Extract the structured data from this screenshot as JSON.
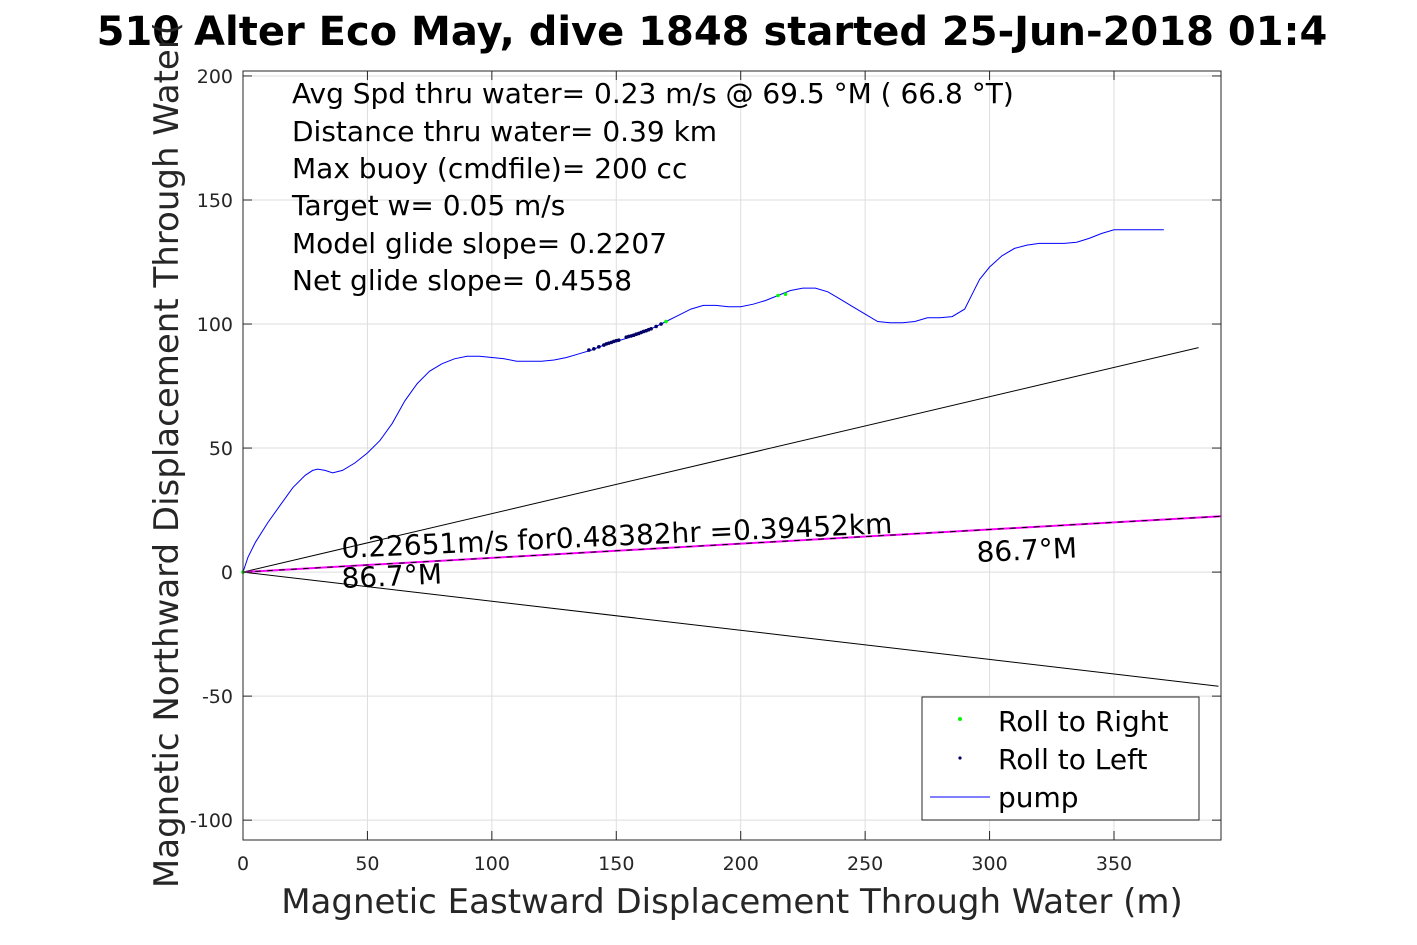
{
  "chart_data": {
    "type": "line",
    "title": "510 Alter Eco May, dive 1848 started 25-Jun-2018 01:4",
    "xlabel": "Magnetic Eastward Displacement Through Water (m)",
    "ylabel": "Magnetic Northward Displacement Through Water(",
    "xlim": [
      0,
      393
    ],
    "ylim": [
      -108,
      202
    ],
    "x_ticks": [
      0,
      50,
      100,
      150,
      200,
      250,
      300,
      350
    ],
    "y_ticks": [
      -100,
      -50,
      0,
      50,
      100,
      150,
      200
    ],
    "grid": true,
    "legend_position": "bottom-right",
    "info_lines": [
      "Avg Spd thru water=  0.23 m/s @  69.5 °M ( 66.8 °T)",
      "Distance thru water=  0.39 km",
      "Max buoy (cmdfile)= 200 cc",
      "Target w= 0.05 m/s",
      "Model glide slope= 0.2207",
      "Net glide slope= 0.4558"
    ],
    "annotations": {
      "speed_text": "0.22651m/s for0.48382hr =0.39452km",
      "heading_left": "86.7°M",
      "heading_right": "86.7°M"
    },
    "series": [
      {
        "name": "pump",
        "type": "line",
        "color": "#0000ff",
        "x": [
          0,
          2,
          5,
          10,
          15,
          20,
          25,
          28,
          30,
          33,
          36,
          40,
          45,
          50,
          55,
          60,
          65,
          70,
          75,
          80,
          85,
          90,
          95,
          100,
          105,
          110,
          115,
          120,
          125,
          130,
          135,
          140,
          145,
          150,
          155,
          160,
          165,
          170,
          175,
          180,
          185,
          190,
          195,
          200,
          205,
          210,
          215,
          220,
          225,
          230,
          235,
          240,
          245,
          250,
          255,
          260,
          265,
          270,
          275,
          280,
          285,
          290,
          293,
          296,
          300,
          305,
          310,
          315,
          320,
          325,
          330,
          335,
          340,
          345,
          350,
          355,
          360,
          365,
          370
        ],
        "y": [
          0,
          6,
          12,
          20,
          27,
          34,
          39,
          41,
          41.5,
          41,
          40,
          41,
          44,
          48,
          53,
          60,
          69,
          76,
          81,
          84,
          86,
          87,
          87,
          86.5,
          86,
          85,
          85,
          85,
          85.5,
          86.5,
          88,
          89.5,
          91.5,
          93,
          94.5,
          96.5,
          98.5,
          101,
          103.5,
          106,
          107.5,
          107.5,
          107,
          107,
          108,
          109.5,
          111.5,
          113.5,
          114.5,
          114.5,
          113,
          110,
          107,
          104,
          101,
          100.5,
          100.5,
          101,
          102.5,
          102.5,
          103,
          106,
          112,
          118,
          123,
          127.5,
          130.5,
          131.8,
          132.5,
          132.5,
          132.5,
          133,
          134.5,
          136.5,
          138,
          138,
          138,
          138,
          138
        ]
      },
      {
        "name": "Roll to Right",
        "type": "scatter",
        "color": "#00ff00",
        "x": [
          0,
          170,
          215,
          218
        ],
        "y": [
          0,
          101,
          111.5,
          112
        ]
      },
      {
        "name": "Roll to Left",
        "type": "scatter",
        "color": "#000066",
        "x": [
          139,
          141,
          143,
          145,
          146,
          147,
          148,
          149,
          150,
          151,
          154,
          155,
          156,
          157,
          158,
          159,
          160,
          161,
          162,
          163,
          164,
          166,
          168
        ],
        "y": [
          89.5,
          90,
          90.8,
          91.5,
          92,
          92.3,
          92.6,
          93,
          93.3,
          93.5,
          94.7,
          95,
          95.2,
          95.5,
          95.9,
          96.2,
          96.6,
          97,
          97.3,
          97.7,
          98.1,
          99,
          100
        ]
      }
    ],
    "reference_lines": [
      {
        "color": "#000000",
        "x": [
          0,
          384
        ],
        "y": [
          0,
          90.5
        ]
      },
      {
        "color": "#000000",
        "x": [
          0,
          392
        ],
        "y": [
          0,
          -46
        ]
      },
      {
        "color": "#ff00ff",
        "x": [
          0,
          393
        ],
        "y": [
          0,
          22.5
        ]
      },
      {
        "color": "#000000",
        "x": [
          0,
          393
        ],
        "y": [
          0,
          22.5
        ]
      }
    ]
  }
}
